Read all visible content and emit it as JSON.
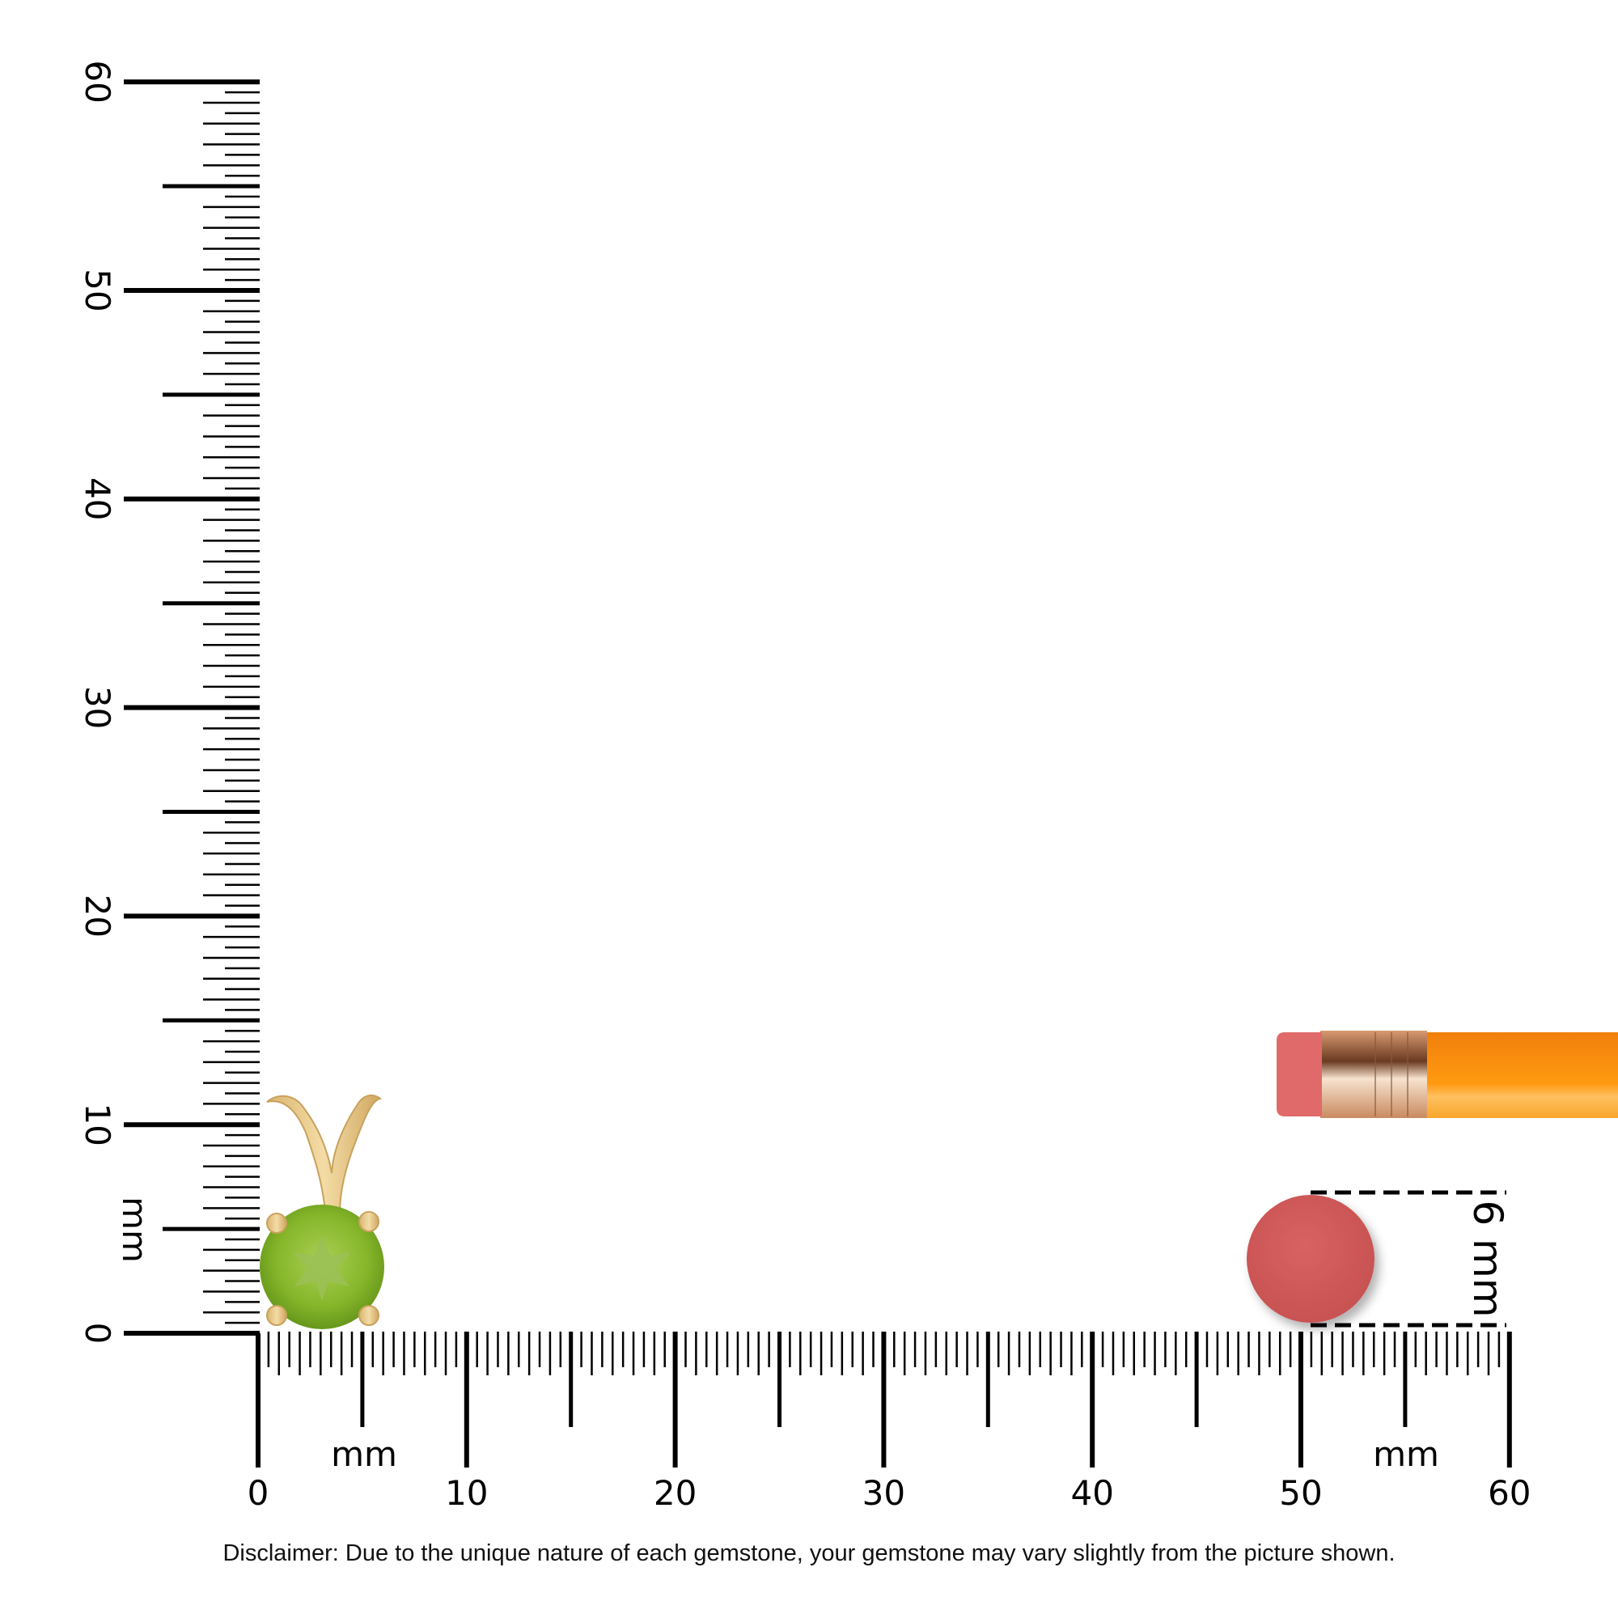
{
  "vertical_ruler": {
    "unit_label": "mm",
    "labels": [
      "0",
      "10",
      "20",
      "30",
      "40",
      "50",
      "60"
    ]
  },
  "horizontal_ruler": {
    "unit_label": "mm",
    "unit_label_right": "mm",
    "labels": [
      "0",
      "10",
      "20",
      "30",
      "40",
      "50",
      "60"
    ]
  },
  "size_reference": {
    "label": "6 mm",
    "circle_color": "#d15a5a"
  },
  "product": {
    "gem_color": "#8cbf2e",
    "metal_color": "#e8c98a"
  },
  "pencil": {
    "body_color": "#f7960f",
    "eraser_color": "#e06a6a",
    "ferrule_color": "#e0b28a"
  },
  "disclaimer": "Disclaimer: Due to the unique nature of each gemstone, your gemstone may vary slightly from the picture shown."
}
